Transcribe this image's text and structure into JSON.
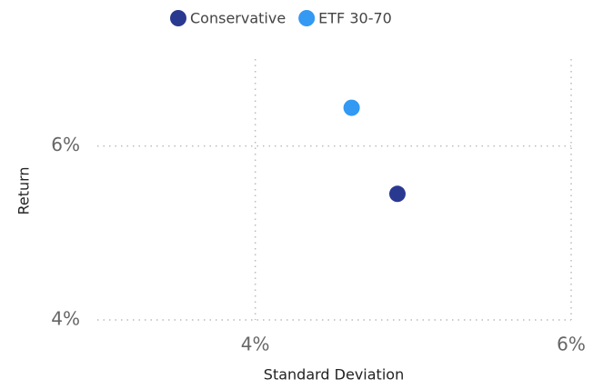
{
  "chart_data": {
    "type": "scatter",
    "x_label": "Standard Deviation",
    "y_label": "Return",
    "series": [
      {
        "name": "Conservative",
        "color": "#2a3990",
        "x": [
          4.9
        ],
        "values": [
          5.45
        ]
      },
      {
        "name": "ETF 30-70",
        "color": "#3399f3",
        "x": [
          4.61
        ],
        "values": [
          6.44
        ]
      }
    ],
    "xlim": [
      3,
      6
    ],
    "xticks": [
      {
        "value": 4,
        "label": "4%"
      },
      {
        "value": 6,
        "label": "6%"
      }
    ],
    "ylim": [
      4,
      7
    ],
    "yticks": [
      {
        "value": 4,
        "label": "4%"
      },
      {
        "value": 6,
        "label": "6%"
      }
    ],
    "grid": true,
    "legend": "top"
  }
}
